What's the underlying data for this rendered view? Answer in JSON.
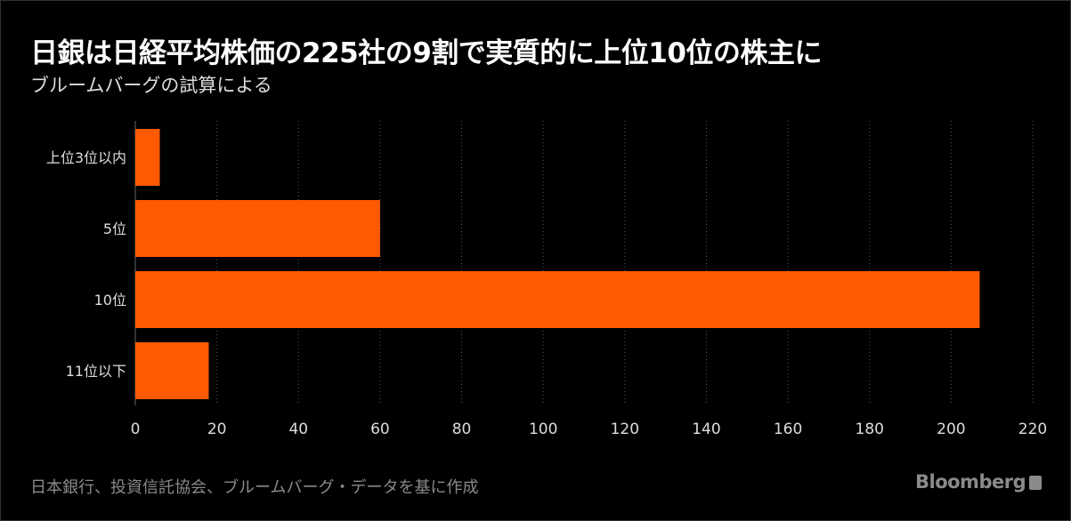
{
  "chart_data": {
    "type": "bar",
    "orientation": "horizontal",
    "title": "日銀は日経平均株価の225社の9割で実質的に上位10位の株主に",
    "subtitle": "ブルームバーグの試算による",
    "categories": [
      "上位3位以内",
      "5位",
      "10位",
      "11位以下"
    ],
    "values": [
      6,
      60,
      207,
      18
    ],
    "xlim": [
      0,
      220
    ],
    "xticks": [
      0,
      20,
      40,
      60,
      80,
      100,
      120,
      140,
      160,
      180,
      200,
      220
    ],
    "xlabel": "",
    "ylabel": "",
    "grid": "vertical-dotted",
    "bar_color": "#ff5a00",
    "source": "日本銀行、投資信託協会、ブルームバーグ・データを基に作成"
  },
  "branding": {
    "logo": "Bloomberg"
  }
}
